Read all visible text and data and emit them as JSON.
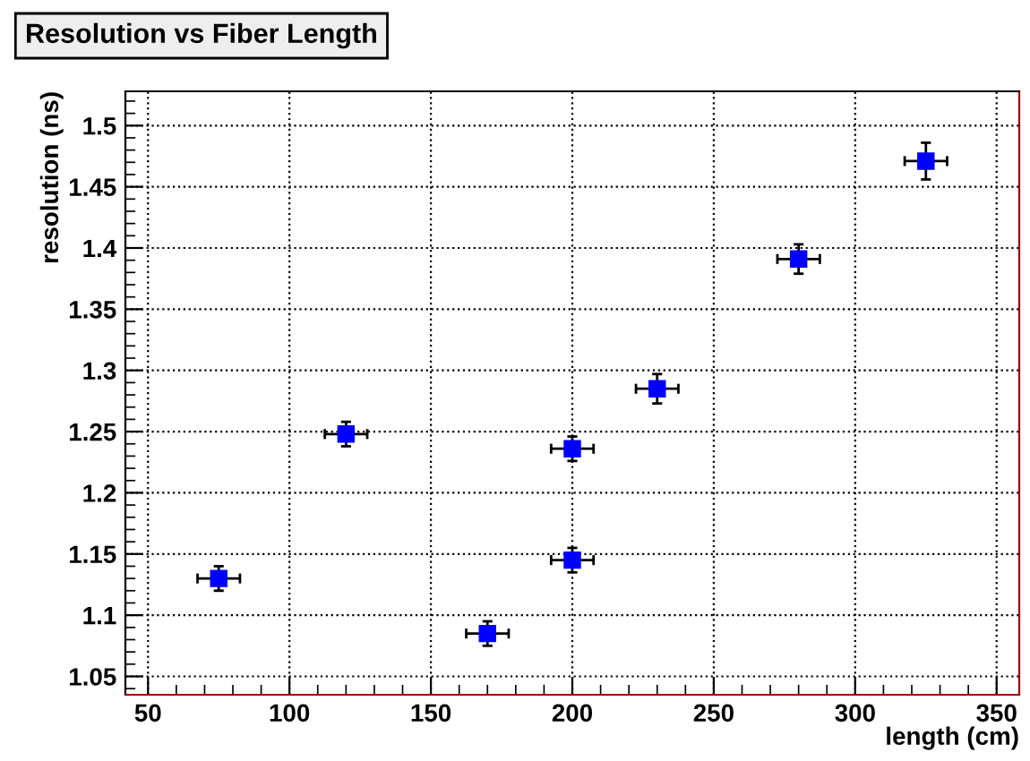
{
  "chart_data": {
    "type": "scatter",
    "title": "Resolution vs Fiber Length",
    "xlabel": "length (cm)",
    "ylabel": "resolution (ns)",
    "x": [
      75,
      120,
      170,
      200,
      200,
      230,
      280,
      325
    ],
    "series": [
      {
        "color": "#0000ff",
        "values": [
          1.13,
          1.248,
          1.085,
          1.145,
          1.236,
          1.285,
          1.391,
          1.471
        ],
        "errors": [
          0.01,
          0.01,
          0.01,
          0.01,
          0.01,
          0.012,
          0.012,
          0.015
        ],
        "xerrors": [
          7.5,
          7.5,
          7.5,
          7.5,
          7.5,
          7.5,
          7.5,
          7.5
        ]
      }
    ],
    "xlim": [
      42,
      358
    ],
    "ylim": [
      1.035,
      1.528
    ],
    "xticks": [
      50,
      100,
      150,
      200,
      250,
      300,
      350
    ],
    "yticks": [
      1.05,
      1.1,
      1.15,
      1.2,
      1.25,
      1.3,
      1.35,
      1.4,
      1.45,
      1.5
    ],
    "grid": true,
    "marker": "square"
  }
}
